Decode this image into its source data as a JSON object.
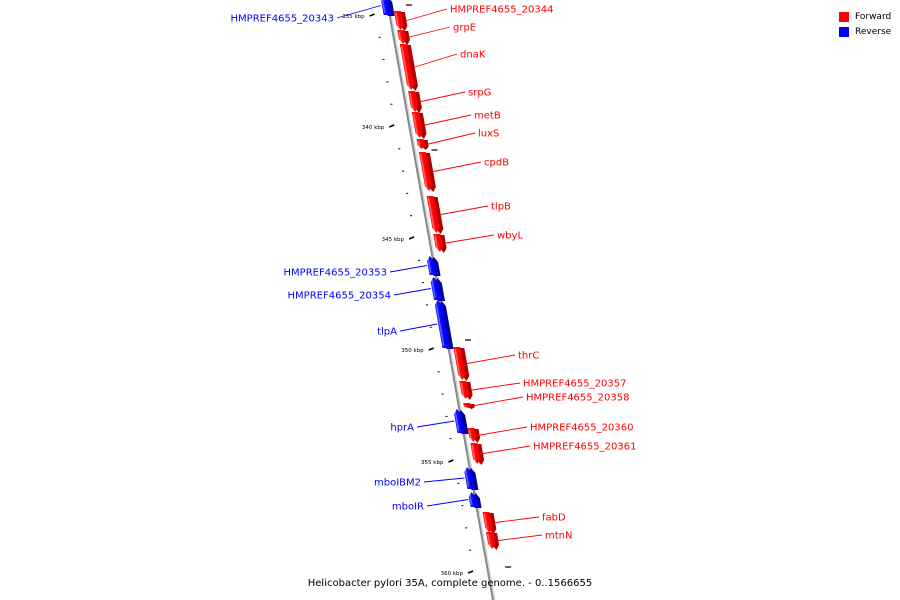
{
  "legend": {
    "forward": {
      "label": "Forward",
      "color": "#ff0000"
    },
    "reverse": {
      "label": "Reverse",
      "color": "#0000ff"
    }
  },
  "caption": "Helicobacter pylori 35A, complete genome. - 0..1566655",
  "scale_labels": [
    "335 kbp",
    "340 kbp",
    "345 kbp",
    "350 kbp",
    "355 kbp",
    "360 kbp"
  ],
  "genes": [
    {
      "name": "HMPREF4655_20343",
      "strand": "reverse"
    },
    {
      "name": "HMPREF4655_20344",
      "strand": "forward"
    },
    {
      "name": "grpE",
      "strand": "forward"
    },
    {
      "name": "dnaK",
      "strand": "forward"
    },
    {
      "name": "srpG",
      "strand": "forward"
    },
    {
      "name": "metB",
      "strand": "forward"
    },
    {
      "name": "luxS",
      "strand": "forward"
    },
    {
      "name": "cpdB",
      "strand": "forward"
    },
    {
      "name": "tlpB",
      "strand": "forward"
    },
    {
      "name": "wbyL",
      "strand": "forward"
    },
    {
      "name": "HMPREF4655_20353",
      "strand": "reverse"
    },
    {
      "name": "HMPREF4655_20354",
      "strand": "reverse"
    },
    {
      "name": "tlpA",
      "strand": "reverse"
    },
    {
      "name": "thrC",
      "strand": "forward"
    },
    {
      "name": "HMPREF4655_20357",
      "strand": "forward"
    },
    {
      "name": "HMPREF4655_20358",
      "strand": "forward"
    },
    {
      "name": "hprA",
      "strand": "reverse"
    },
    {
      "name": "HMPREF4655_20360",
      "strand": "forward"
    },
    {
      "name": "HMPREF4655_20361",
      "strand": "forward"
    },
    {
      "name": "mboIBM2",
      "strand": "reverse"
    },
    {
      "name": "mboIR",
      "strand": "reverse"
    },
    {
      "name": "fabD",
      "strand": "forward"
    },
    {
      "name": "mtnN",
      "strand": "forward"
    }
  ]
}
